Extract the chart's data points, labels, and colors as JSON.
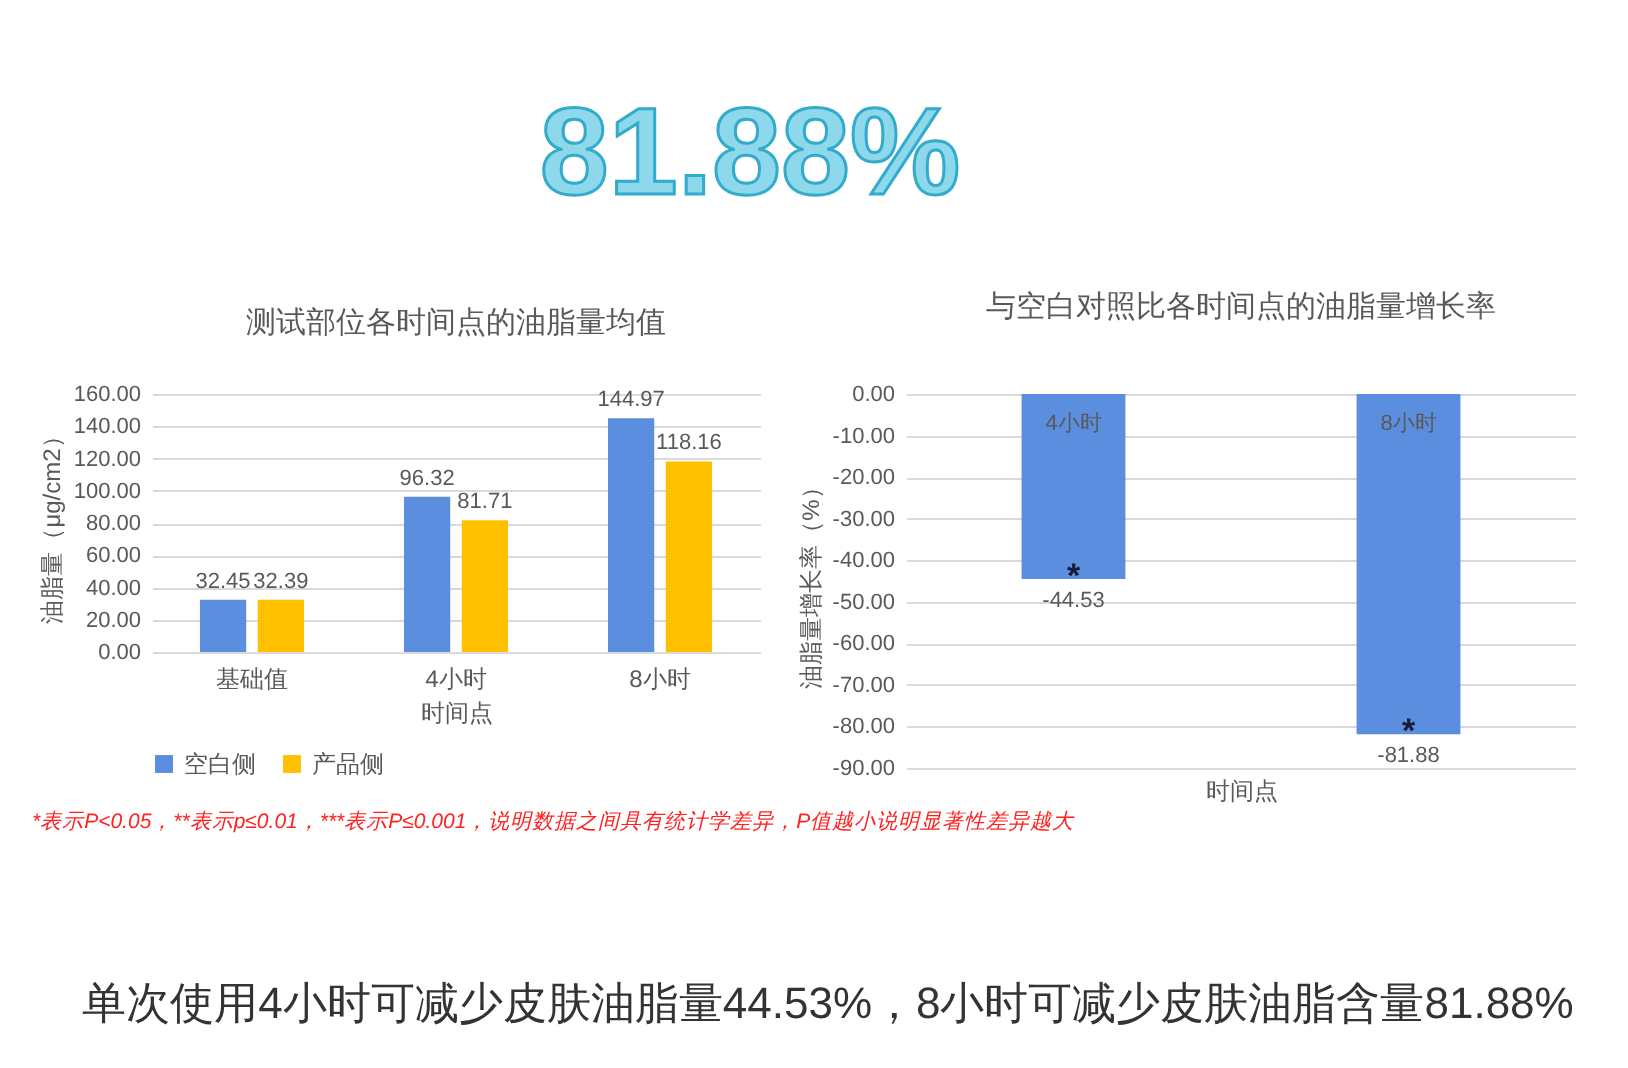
{
  "chart_data": [
    {
      "type": "bar",
      "title": "测试部位各时间点的油脂量均值",
      "categories": [
        "基础值",
        "4小时",
        "8小时"
      ],
      "series": [
        {
          "name": "空白侧",
          "color": "#5b8ede",
          "values": [
            32.45,
            96.32,
            144.97
          ]
        },
        {
          "name": "产品侧",
          "color": "#ffc000",
          "values": [
            32.39,
            81.71,
            118.16
          ]
        }
      ],
      "xlabel": "时间点",
      "ylabel": "油脂量（μg/cm2）",
      "ylim": [
        0,
        160
      ],
      "yticks": [
        {
          "value": 0,
          "label": "0.00"
        },
        {
          "value": 20,
          "label": "20.00"
        },
        {
          "value": 40,
          "label": "40.00"
        },
        {
          "value": 60,
          "label": "60.00"
        },
        {
          "value": 80,
          "label": "80.00"
        },
        {
          "value": 100,
          "label": "100.00"
        },
        {
          "value": 120,
          "label": "120.00"
        },
        {
          "value": 140,
          "label": "140.00"
        },
        {
          "value": 160,
          "label": "160.00"
        }
      ],
      "grid": "y",
      "legend": "bottom",
      "data_labels": true,
      "annotations": [
        "81.88%",
        "*表示P<0.05，**表示p≤0.01，***表示P≤0.001，说明数据之间具有统计学差异，P值越小说明显著性差异越大"
      ]
    },
    {
      "type": "bar",
      "title": "与空白对照比各时间点的油脂量增长率",
      "categories": [
        "4小时",
        "8小时"
      ],
      "color": "#5b8ede",
      "values": [
        -44.53,
        -81.88
      ],
      "xlabel": "时间点",
      "ylabel": "油脂量增长率（%）",
      "ylim": [
        -90,
        0
      ],
      "yticks": [
        {
          "value": -90,
          "label": "-90.00"
        },
        {
          "value": -80,
          "label": "-80.00"
        },
        {
          "value": -70,
          "label": "-70.00"
        },
        {
          "value": -60,
          "label": "-60.00"
        },
        {
          "value": -50,
          "label": "-50.00"
        },
        {
          "value": -40,
          "label": "-40.00"
        },
        {
          "value": -30,
          "label": "-30.00"
        },
        {
          "value": -20,
          "label": "-20.00"
        },
        {
          "value": -10,
          "label": "-10.00"
        },
        {
          "value": 0,
          "label": "0.00"
        }
      ],
      "grid": "y",
      "data_labels": true,
      "annotations": [
        {
          "text": "*",
          "x": "4小时",
          "y": -44.53
        },
        {
          "text": "*",
          "x": "8小时",
          "y": -81.88
        },
        "单次使用4小时可减少皮肤油脂量44.53%，8小时可减少皮肤油脂含量81.88%"
      ]
    }
  ]
}
